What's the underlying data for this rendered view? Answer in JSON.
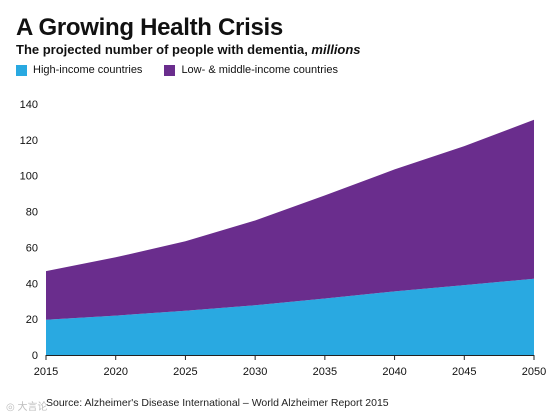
{
  "header": {
    "title": "A Growing Health Crisis",
    "subtitle_main": "The projected number of people with dementia, ",
    "subtitle_unit": "millions"
  },
  "footer": {
    "source": "Source: Alzheimer's Disease International – World Alzheimer Report 2015",
    "watermark": "◎ 大言论"
  },
  "chart_data": {
    "type": "area",
    "stacked": true,
    "x": [
      2015,
      2020,
      2025,
      2030,
      2035,
      2040,
      2045,
      2050
    ],
    "series": [
      {
        "name": "High-income countries",
        "color": "#29a9e1",
        "values": [
          19.7,
          22,
          24.7,
          27.7,
          31.5,
          35.5,
          39,
          42.5
        ]
      },
      {
        "name": "Low- & middle-income countries",
        "color": "#6a2d8d",
        "values": [
          27.1,
          32.5,
          38.8,
          47.3,
          57.5,
          68,
          77.5,
          88.7
        ]
      }
    ],
    "xticks": [
      2015,
      2020,
      2025,
      2030,
      2035,
      2040,
      2045,
      2050
    ],
    "yticks": [
      0,
      20,
      40,
      60,
      80,
      100,
      120,
      140
    ],
    "xlim": [
      2015,
      2050
    ],
    "ylim": [
      0,
      140
    ],
    "grid": false,
    "legend": "top-left"
  }
}
